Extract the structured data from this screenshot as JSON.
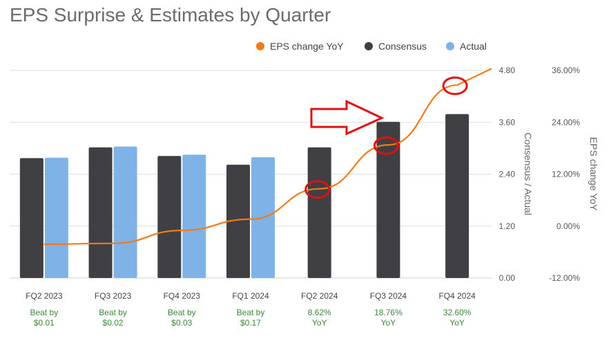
{
  "chart_data": {
    "type": "bar",
    "title": "EPS Surprise & Estimates by Quarter",
    "categories": [
      "FQ2 2023",
      "FQ3 2023",
      "FQ4 2023",
      "FQ1 2024",
      "FQ2 2024",
      "FQ3 2024",
      "FQ4 2024"
    ],
    "notes": [
      [
        "Beat by",
        "$0.01"
      ],
      [
        "Beat by",
        "$0.02"
      ],
      [
        "Beat by",
        "$0.03"
      ],
      [
        "Beat by",
        "$0.17"
      ],
      [
        "8.62%",
        "YoY"
      ],
      [
        "18.76%",
        "YoY"
      ],
      [
        "32.60%",
        "YoY"
      ]
    ],
    "series": [
      {
        "name": "Consensus",
        "kind": "bar",
        "axis": "left",
        "color": "#3f3f44",
        "values": [
          2.77,
          3.02,
          2.82,
          2.62,
          3.02,
          3.61,
          3.79
        ]
      },
      {
        "name": "Actual",
        "kind": "bar",
        "axis": "left",
        "color": "#7fb3e8",
        "values": [
          2.78,
          3.04,
          2.85,
          2.79,
          null,
          null,
          null
        ]
      },
      {
        "name": "EPS change YoY",
        "kind": "line",
        "axis": "right",
        "color": "#f27b16",
        "values": [
          -4.2,
          -4.0,
          -1.0,
          1.6,
          8.62,
          18.76,
          32.6
        ]
      }
    ],
    "left_axis": {
      "title": "Consensus / Actual",
      "ylim": [
        0,
        4.8
      ],
      "ticks": [
        "0.00",
        "1.20",
        "2.40",
        "3.60",
        "4.80"
      ]
    },
    "right_axis": {
      "title": "EPS change YoY",
      "ylim": [
        -12,
        36
      ],
      "ticks": [
        "-12.00%",
        "0.00%",
        "12.00%",
        "24.00%",
        "36.00%"
      ]
    },
    "legend_position": "top-right",
    "grid": true,
    "annotations": {
      "circles": [
        "FQ2 2024",
        "FQ3 2024",
        "FQ4 2024"
      ],
      "arrow": "pointing right toward FQ3 2024"
    },
    "colors": {
      "gridline": "#dddddd",
      "annotation": "#e01010"
    }
  }
}
